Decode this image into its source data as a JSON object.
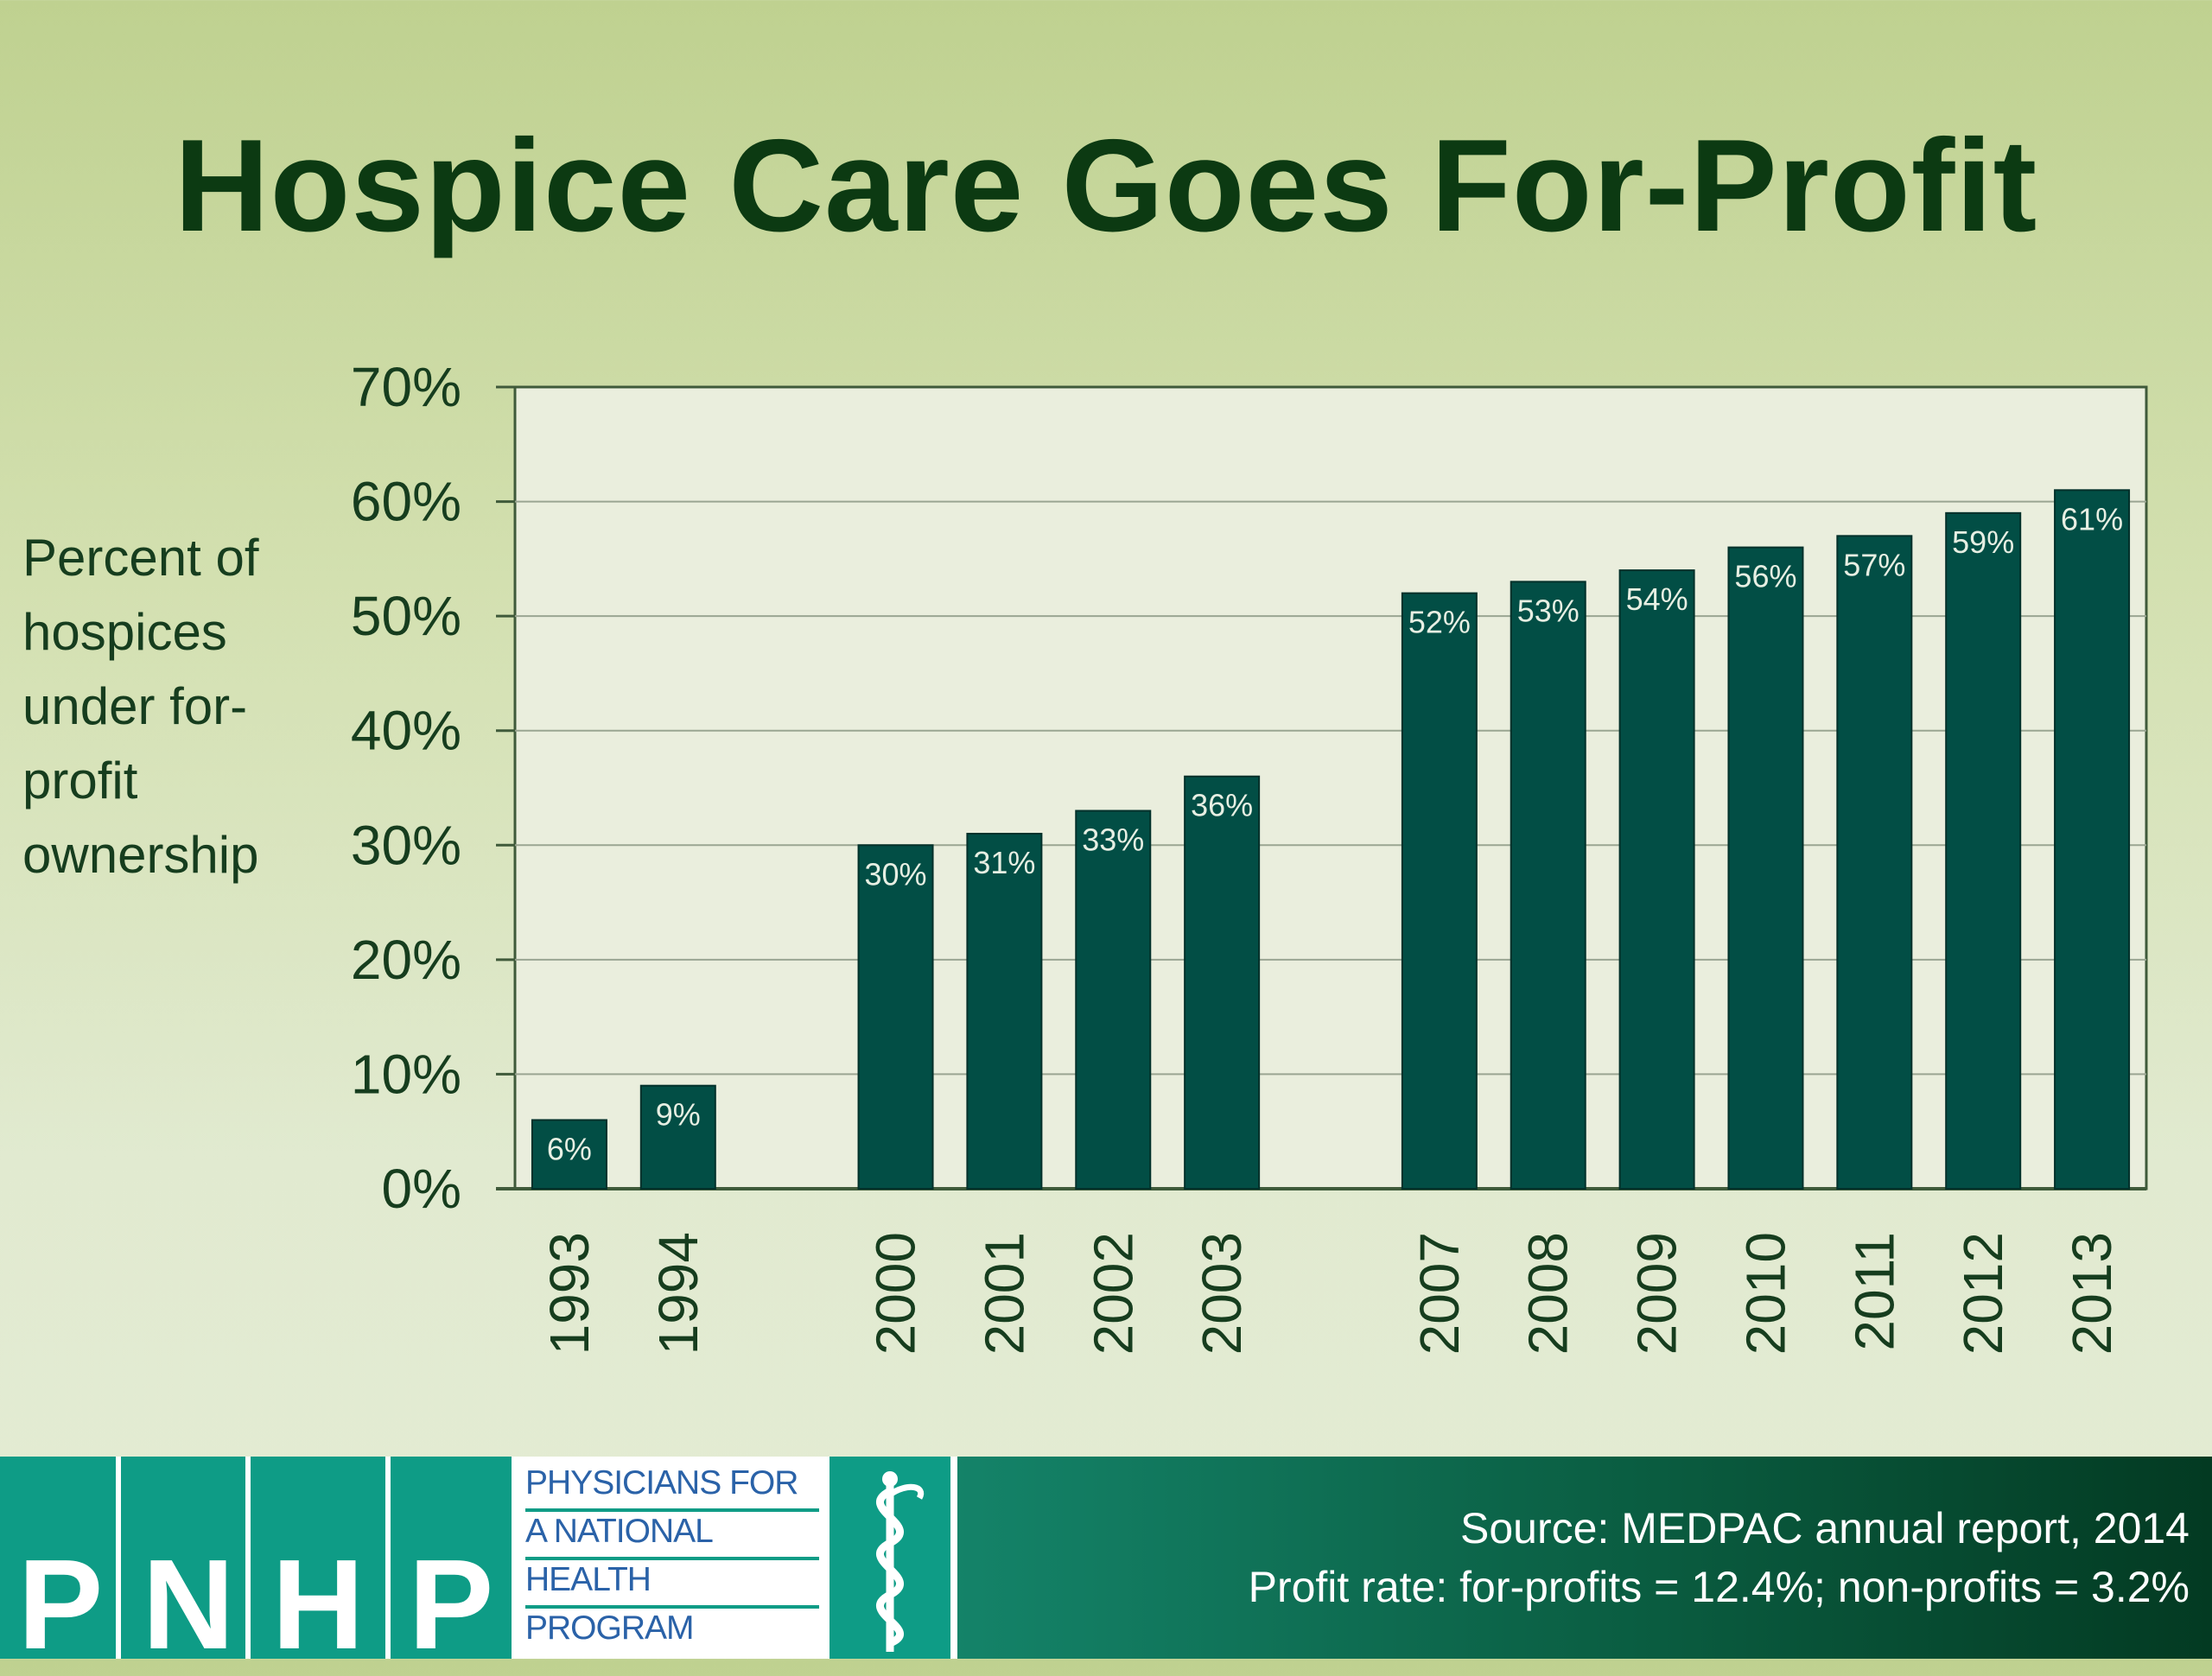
{
  "slide": {
    "title": "Hospice Care Goes For-Profit"
  },
  "chart_data": {
    "type": "bar",
    "categories": [
      "1993",
      "1994",
      "",
      "2000",
      "2001",
      "2002",
      "2003",
      "",
      "2007",
      "2008",
      "2009",
      "2010",
      "2011",
      "2012",
      "2013"
    ],
    "values": [
      6,
      9,
      null,
      30,
      31,
      33,
      36,
      null,
      52,
      53,
      54,
      56,
      57,
      59,
      61
    ],
    "data_labels": [
      "6%",
      "9%",
      "",
      "30%",
      "31%",
      "33%",
      "36%",
      "",
      "52%",
      "53%",
      "54%",
      "56%",
      "57%",
      "59%",
      "61%"
    ],
    "ylabel": "Percent of hospices under for-profit ownership",
    "ylabel_lines": [
      "Percent of",
      "hospices",
      "under for-",
      "profit",
      "ownership"
    ],
    "yticks": [
      "0%",
      "10%",
      "20%",
      "30%",
      "40%",
      "50%",
      "60%",
      "70%"
    ],
    "ylim": [
      0,
      70
    ],
    "grid": true,
    "bar_color": "#024e45",
    "plot_background": "#eaeedd"
  },
  "footer": {
    "logo_letters": [
      "P",
      "N",
      "H",
      "P"
    ],
    "logo_text_lines": [
      "PHYSICIANS FOR",
      "A NATIONAL",
      "HEALTH",
      "PROGRAM"
    ],
    "icon": "caduceus-icon",
    "source_line": "Source: MEDPAC annual report, 2014",
    "profit_line": "Profit rate: for-profits = 12.4%; non-profits = 3.2%"
  }
}
